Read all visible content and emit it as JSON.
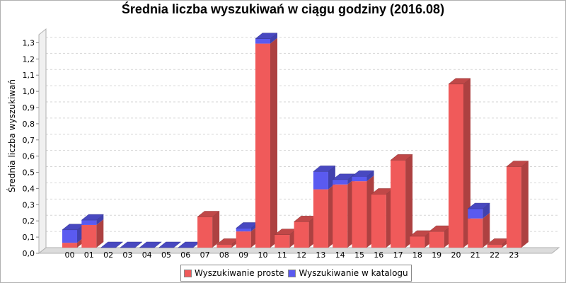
{
  "chart_data": {
    "type": "bar",
    "stacked": true,
    "title": "Średnia liczba wyszukiwań w ciągu godziny (2016.08)",
    "xlabel": "",
    "ylabel": "Średnia liczba wyszukiwań",
    "categories": [
      "00",
      "01",
      "02",
      "03",
      "04",
      "05",
      "06",
      "07",
      "08",
      "09",
      "10",
      "11",
      "12",
      "13",
      "14",
      "15",
      "16",
      "17",
      "18",
      "19",
      "20",
      "21",
      "22",
      "23"
    ],
    "series": [
      {
        "name": "Wyszukiwanie proste",
        "color": "#f05a5a",
        "values": [
          0.03,
          0.14,
          0,
          0,
          0,
          0,
          0,
          0.19,
          0.02,
          0.1,
          1.26,
          0.08,
          0.16,
          0.36,
          0.39,
          0.41,
          0.33,
          0.54,
          0.07,
          0.1,
          1.01,
          0.18,
          0.02,
          0.5
        ]
      },
      {
        "name": "Wyszukiwanie w katalogu",
        "color": "#5a5af0",
        "values": [
          0.08,
          0.03,
          0,
          0,
          0,
          0,
          0,
          0,
          0,
          0.02,
          0.03,
          0,
          0,
          0.11,
          0.03,
          0.03,
          0,
          0,
          0,
          0,
          0,
          0.06,
          0,
          0
        ]
      }
    ],
    "ylim": [
      0,
      1.35
    ],
    "yticks": [
      "0,0",
      "0,1",
      "0,2",
      "0,3",
      "0,4",
      "0,5",
      "0,6",
      "0,7",
      "0,8",
      "0,9",
      "1,0",
      "1,1",
      "1,2",
      "1,3"
    ],
    "grid": true,
    "legend_position": "bottom"
  }
}
